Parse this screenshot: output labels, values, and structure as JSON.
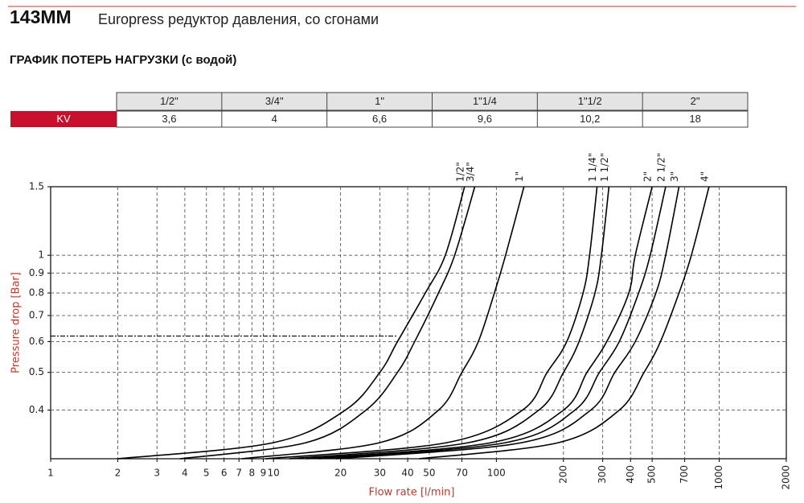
{
  "header": {
    "code": "143MM",
    "title": "Europress редуктор давления, со сгонами"
  },
  "subtitle": "ГРАФИК ПОТЕРЬ НАГРУЗКИ (с водой)",
  "table": {
    "columns": [
      "1/2\"",
      "3/4\"",
      "1\"",
      "1\"1/4",
      "1\"1/2",
      "2\""
    ],
    "row_label": "KV",
    "values": [
      "3,6",
      "4",
      "6,6",
      "9,6",
      "10,2",
      "18"
    ]
  },
  "chart_data": {
    "type": "line",
    "xlabel": "Flow rate [l/min]",
    "ylabel": "Pressure drop [Bar]",
    "log_x": true,
    "log_y": true,
    "grid": true,
    "line_color": "#000000",
    "xlim": [
      1,
      2000
    ],
    "ylim": [
      0.3,
      1.5
    ],
    "xticks": [
      1,
      2,
      3,
      4,
      5,
      6,
      7,
      8,
      9,
      10,
      20,
      30,
      40,
      50,
      70,
      100,
      200,
      300,
      400,
      500,
      700,
      1000,
      2000
    ],
    "yticks": [
      0.4,
      0.5,
      0.6,
      0.7,
      0.8,
      0.9,
      1,
      1.5
    ],
    "reference_line": {
      "x": 36,
      "y": 0.62
    },
    "series": [
      {
        "name": "1/2\"",
        "x": [
          2,
          10,
          21,
          30,
          36,
          48,
          59,
          72
        ],
        "values": [
          0.3,
          0.33,
          0.4,
          0.5,
          0.6,
          0.8,
          1.0,
          1.5
        ]
      },
      {
        "name": "3/4\"",
        "x": [
          3.8,
          14,
          26,
          36,
          43,
          55,
          65,
          80
        ],
        "values": [
          0.3,
          0.33,
          0.4,
          0.5,
          0.6,
          0.8,
          1.0,
          1.5
        ]
      },
      {
        "name": "1\"",
        "x": [
          7.2,
          30,
          55,
          70,
          83,
          98,
          110,
          133
        ],
        "values": [
          0.3,
          0.33,
          0.4,
          0.5,
          0.6,
          0.8,
          1.0,
          1.5
        ]
      },
      {
        "name": "1 1/4\"",
        "x": [
          9.2,
          60,
          131,
          169,
          207,
          245,
          262,
          283
        ],
        "values": [
          0.3,
          0.33,
          0.4,
          0.5,
          0.6,
          0.8,
          1.0,
          1.5
        ]
      },
      {
        "name": "1 1/2\"",
        "x": [
          11.8,
          75,
          155,
          200,
          235,
          277,
          296,
          320
        ],
        "values": [
          0.3,
          0.33,
          0.4,
          0.5,
          0.6,
          0.8,
          1.0,
          1.5
        ]
      },
      {
        "name": "2\"",
        "x": [
          14,
          95,
          200,
          255,
          313,
          393,
          420,
          500
        ],
        "values": [
          0.3,
          0.33,
          0.4,
          0.5,
          0.6,
          0.8,
          1.0,
          1.5
        ]
      },
      {
        "name": "2 1/2\"",
        "x": [
          16,
          110,
          225,
          290,
          356,
          435,
          490,
          575
        ],
        "values": [
          0.3,
          0.33,
          0.4,
          0.5,
          0.6,
          0.8,
          1.0,
          1.5
        ]
      },
      {
        "name": "3\"",
        "x": [
          19,
          130,
          265,
          340,
          420,
          520,
          575,
          660
        ],
        "values": [
          0.3,
          0.33,
          0.4,
          0.5,
          0.6,
          0.8,
          1.0,
          1.5
        ]
      },
      {
        "name": "4\"",
        "x": [
          45,
          190,
          356,
          460,
          545,
          660,
          750,
          900
        ],
        "values": [
          0.3,
          0.33,
          0.4,
          0.5,
          0.6,
          0.8,
          1.0,
          1.5
        ]
      }
    ]
  }
}
